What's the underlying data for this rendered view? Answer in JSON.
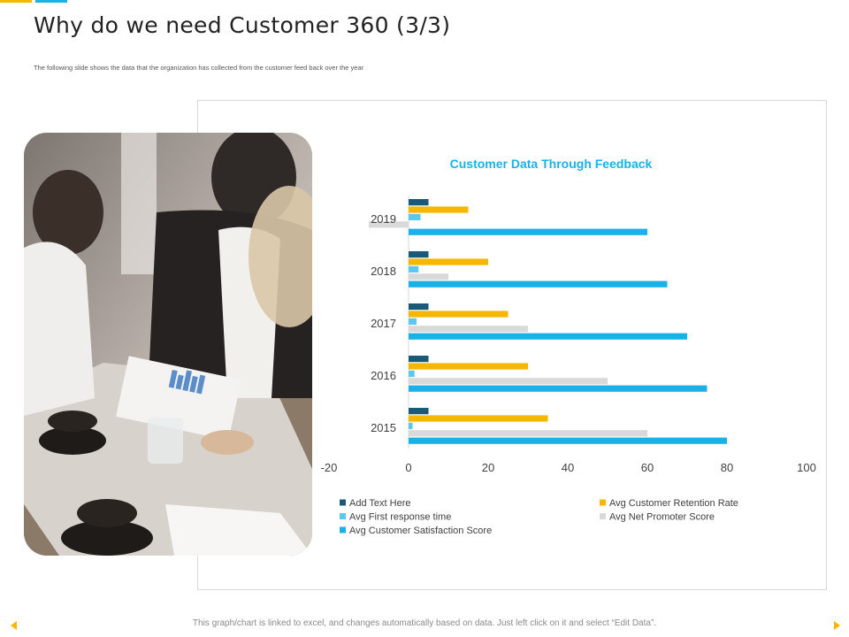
{
  "slide": {
    "title": "Why do we need Customer 360 (3/3)",
    "subtitle": "The following slide shows the data that the organization has collected from the customer feed back over the year",
    "footer": "This graph/chart is linked to excel, and changes automatically based on data. Just left click on it and select “Edit Data”.",
    "photo_description": "business-meeting-photo"
  },
  "colors": {
    "accent_yellow": "#f5b700",
    "accent_blue": "#1ab0e8",
    "title_blue": "#1ab0e8"
  },
  "chart_data": {
    "type": "bar",
    "orientation": "horizontal",
    "title": "Customer Data Through Feedback",
    "categories": [
      "2015",
      "2016",
      "2017",
      "2018",
      "2019"
    ],
    "xlim": [
      -20,
      100
    ],
    "xticks": [
      "-20",
      "0",
      "20",
      "40",
      "60",
      "80",
      "100"
    ],
    "grid": false,
    "legend_position": "bottom",
    "series": [
      {
        "name": "Add Text Here",
        "color": "#1a5a78",
        "values": [
          5,
          5,
          5,
          5,
          5
        ]
      },
      {
        "name": "Avg Customer Retention Rate",
        "color": "#f5b700",
        "values": [
          35,
          30,
          25,
          20,
          15
        ]
      },
      {
        "name": "Avg First response time",
        "color": "#5bc8ef",
        "values": [
          1,
          1.5,
          2,
          2.5,
          3
        ]
      },
      {
        "name": "Avg Net Promoter Score",
        "color": "#d9d9d9",
        "values": [
          60,
          50,
          30,
          10,
          -10
        ]
      },
      {
        "name": "Avg Customer Satisfaction Score",
        "color": "#1ab0e8",
        "values": [
          80,
          75,
          70,
          65,
          60
        ]
      }
    ]
  }
}
